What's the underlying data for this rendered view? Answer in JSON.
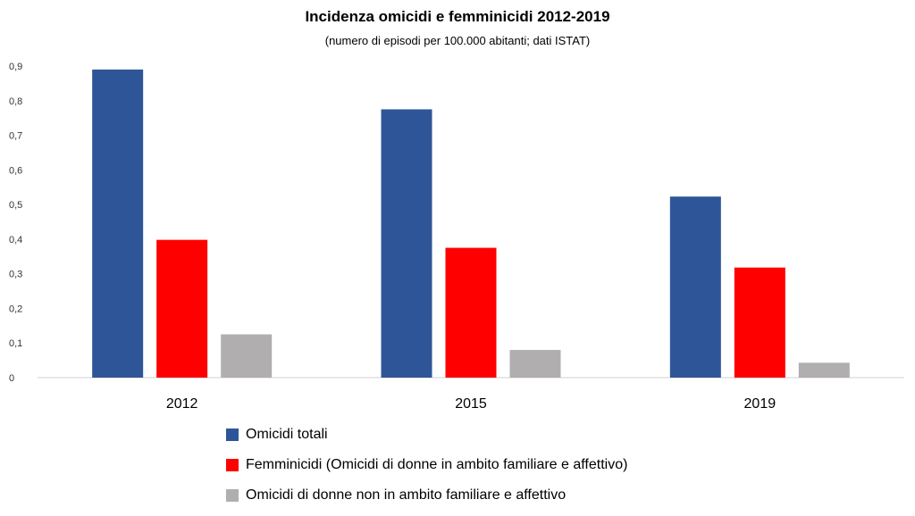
{
  "chart_data": {
    "type": "bar",
    "title": "Incidenza omicidi e femminicidi 2012-2019",
    "subtitle": "(numero di episodi per 100.000 abitanti; dati ISTAT)",
    "categories": [
      "2012",
      "2015",
      "2019"
    ],
    "ylim": [
      0,
      0.9
    ],
    "yticks": [
      "0",
      "0,1",
      "0,2",
      "0,3",
      "0,4",
      "0,5",
      "0,6",
      "0,7",
      "0,8",
      "0,9"
    ],
    "series": [
      {
        "name": "Omicidi totali",
        "color": "#2e5597",
        "values": [
          0.89,
          0.775,
          0.523
        ]
      },
      {
        "name": "Femminicidi (Omicidi di donne in ambito familiare e affettivo)",
        "color": "#ff0000",
        "values": [
          0.398,
          0.375,
          0.318
        ]
      },
      {
        "name": "Omicidi di donne non in ambito familiare e affettivo",
        "color": "#b0aeae",
        "values": [
          0.125,
          0.08,
          0.043
        ]
      }
    ],
    "legend_position": "bottom",
    "grid": false
  }
}
